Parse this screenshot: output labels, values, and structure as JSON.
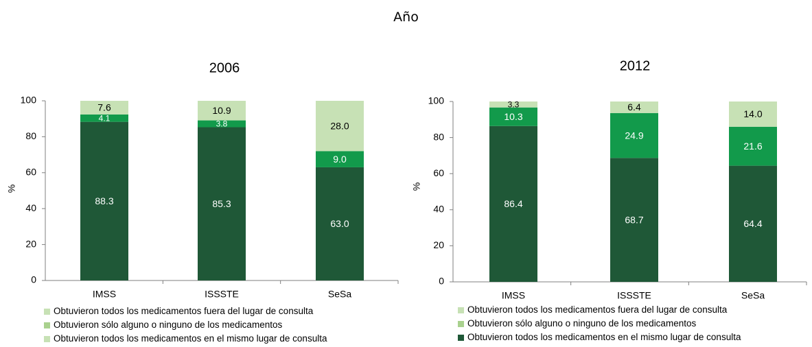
{
  "figure": {
    "title": "Año"
  },
  "legend": {
    "items": [
      "Obtuvieron todos los medicamentos fuera del lugar de consulta",
      "Obtuvieron sólo alguno o ninguno de los medicamentos",
      "Obtuvieron todos los medicamentos en el mismo lugar de consulta"
    ]
  },
  "colors": {
    "fuera": "#c7e1b5",
    "alguno": "#129a4b",
    "mismo": "#1f5837",
    "legend_alguno_2006": "#a9d18e",
    "legend_mismo_2006": "#c7e1b5",
    "axis": "#7f7f7f"
  },
  "chart_data": [
    {
      "type": "bar",
      "stacked": true,
      "title": "2006",
      "ylabel": "%",
      "xlabel": "",
      "ylim": [
        0,
        100
      ],
      "yticks": [
        0,
        20,
        40,
        60,
        80,
        100
      ],
      "categories": [
        "IMSS",
        "ISSSTE",
        "SeSa"
      ],
      "series": [
        {
          "name": "Obtuvieron todos los medicamentos en el mismo lugar de consulta",
          "values": [
            88.3,
            85.3,
            63.0
          ],
          "labels": [
            "88.3",
            "85.3",
            "63.0"
          ]
        },
        {
          "name": "Obtuvieron sólo alguno o ninguno de los medicamentos",
          "values": [
            4.1,
            3.8,
            9.0
          ],
          "labels": [
            "4.1",
            "3.8",
            "9.0"
          ]
        },
        {
          "name": "Obtuvieron todos los medicamentos fuera del lugar de consulta",
          "values": [
            7.6,
            10.9,
            28.0
          ],
          "labels": [
            "7.6",
            "10.9",
            "28.0"
          ]
        }
      ]
    },
    {
      "type": "bar",
      "stacked": true,
      "title": "2012",
      "ylabel": "%",
      "xlabel": "",
      "ylim": [
        0,
        100
      ],
      "yticks": [
        0,
        20,
        40,
        60,
        80,
        100
      ],
      "categories": [
        "IMSS",
        "ISSSTE",
        "SeSa"
      ],
      "series": [
        {
          "name": "Obtuvieron todos los medicamentos en el mismo lugar de consulta",
          "values": [
            86.4,
            68.7,
            64.4
          ],
          "labels": [
            "86.4",
            "68.7",
            "64.4"
          ]
        },
        {
          "name": "Obtuvieron sólo alguno o ninguno de los medicamentos",
          "values": [
            10.3,
            24.9,
            21.6
          ],
          "labels": [
            "10.3",
            "24.9",
            "21.6"
          ]
        },
        {
          "name": "Obtuvieron todos los medicamentos fuera del lugar de consulta",
          "values": [
            3.3,
            6.4,
            14.0
          ],
          "labels": [
            "3.3",
            "6.4",
            "14.0"
          ]
        }
      ]
    }
  ]
}
